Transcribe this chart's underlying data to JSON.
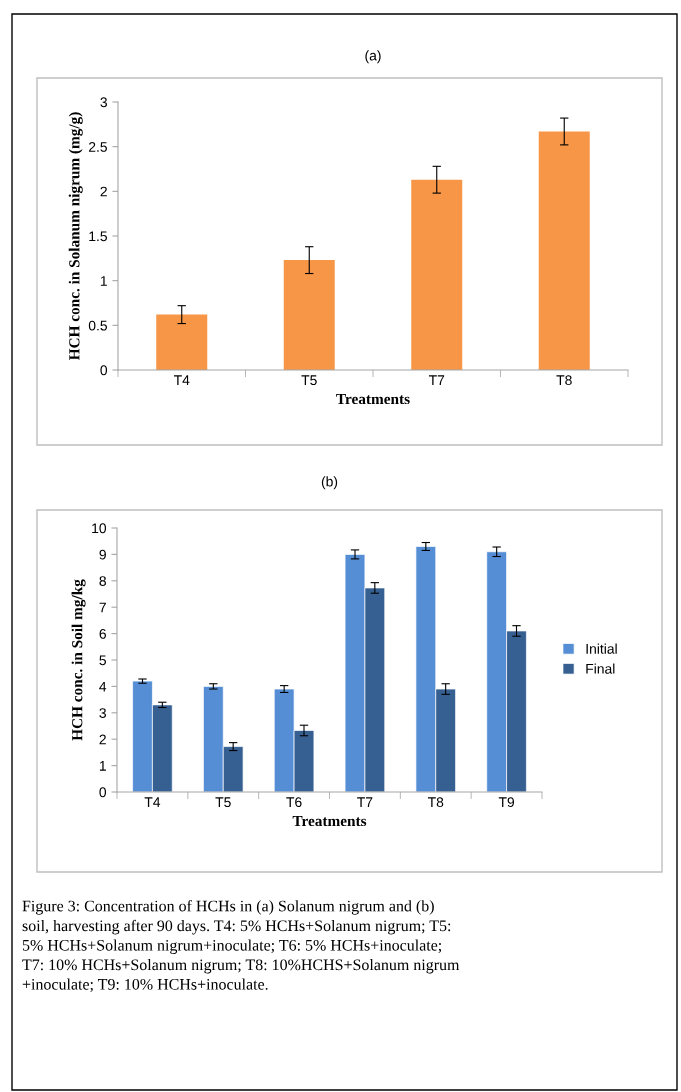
{
  "chart_data": [
    {
      "type": "bar",
      "title": "(a)",
      "xlabel": "Treatments",
      "ylabel": "HCH conc. in Solanum nigrum (mg/g)",
      "categories": [
        "T4",
        "T5",
        "T7",
        "T8"
      ],
      "series": [
        {
          "color": "#f79646",
          "values": [
            0.62,
            1.23,
            2.13,
            2.67
          ],
          "errors": [
            0.1,
            0.15,
            0.15,
            0.15
          ]
        }
      ],
      "ylim": [
        0,
        3
      ],
      "yticks": [
        0,
        0.5,
        1,
        1.5,
        2,
        2.5,
        3
      ],
      "grid": false,
      "legend": false
    },
    {
      "type": "bar",
      "title": "(b)",
      "xlabel": "Treatments",
      "ylabel": "HCH conc. in Soil mg/kg",
      "categories": [
        "T4",
        "T5",
        "T6",
        "T7",
        "T8",
        "T9"
      ],
      "series": [
        {
          "name": "Initial",
          "color": "#558ed5",
          "values": [
            4.2,
            4.0,
            3.9,
            9.0,
            9.3,
            9.1
          ],
          "errors": [
            0.08,
            0.1,
            0.13,
            0.17,
            0.15,
            0.18
          ]
        },
        {
          "name": "Final",
          "color": "#376092",
          "values": [
            3.3,
            1.72,
            2.33,
            7.73,
            3.9,
            6.1
          ],
          "errors": [
            0.1,
            0.15,
            0.2,
            0.2,
            0.2,
            0.2
          ]
        }
      ],
      "ylim": [
        0,
        10
      ],
      "yticks": [
        0,
        1,
        2,
        3,
        4,
        5,
        6,
        7,
        8,
        9,
        10
      ],
      "grid": false,
      "legend": "right",
      "annotations": [
        "Figure 3: Concentration of HCHs in (a) Solanum nigrum and (b)\nsoil, harvesting after 90 days. T4: 5% HCHs+Solanum nigrum; T5:\n5% HCHs+Solanum nigrum+inoculate; T6: 5% HCHs+inoculate;\nT7: 10% HCHs+Solanum nigrum; T8: 10%HCHS+Solanum nigrum\n+inoculate; T9: 10% HCHs+inoculate."
      ]
    }
  ]
}
